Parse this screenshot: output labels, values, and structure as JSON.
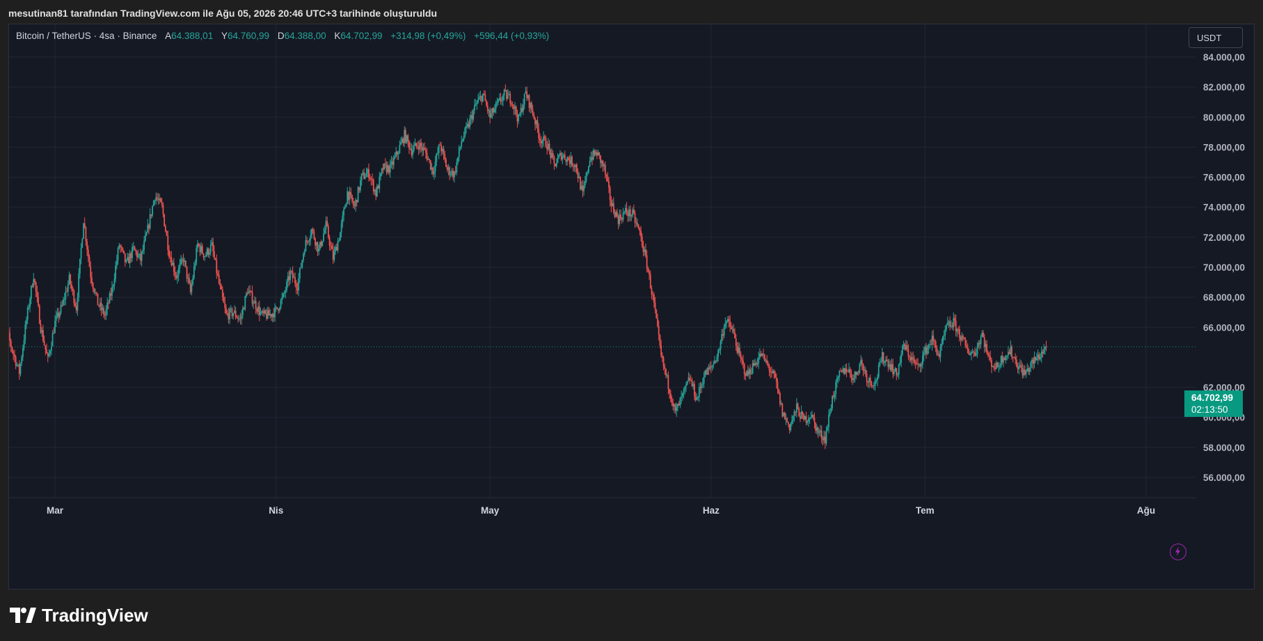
{
  "header": {
    "attribution": "mesutinan81 tarafından TradingView.com ile Ağu 05, 2026 20:46 UTC+3 tarihinde oluşturuldu"
  },
  "legend": {
    "symbol": "Bitcoin / TetherUS · 4sa · Binance",
    "open_label": "A",
    "open_value": "64.388,01",
    "high_label": "Y",
    "high_value": "64.760,99",
    "low_label": "D",
    "low_value": "64.388,00",
    "close_label": "K",
    "close_value": "64.702,99",
    "change_1": "+314,98 (+0,49%)",
    "change_2": "+596,44 (+0,93%)"
  },
  "currency_button": "USDT",
  "last_price": {
    "value": "64.702,99",
    "countdown": "02:13:50"
  },
  "footer": {
    "brand": "TradingView"
  },
  "colors": {
    "up": "#26a69a",
    "down": "#ef5350",
    "background": "#151924",
    "grid": "#242733",
    "price_tag": "#089981"
  },
  "chart_data": {
    "type": "candlestick",
    "symbol": "BTCUSDT",
    "interval": "4h",
    "ylim": [
      55000,
      85000
    ],
    "y_ticks": [
      "84.000,00",
      "82.000,00",
      "80.000,00",
      "78.000,00",
      "76.000,00",
      "74.000,00",
      "72.000,00",
      "70.000,00",
      "68.000,00",
      "66.000,00",
      "62.000,00",
      "60.000,00",
      "58.000,00",
      "56.000,00"
    ],
    "y_tick_values": [
      84000,
      82000,
      80000,
      78000,
      76000,
      74000,
      72000,
      70000,
      68000,
      66000,
      62000,
      60000,
      58000,
      56000
    ],
    "x_labels": [
      "Mar",
      "Nis",
      "May",
      "Haz",
      "Tem",
      "Ağu"
    ],
    "x_label_positions_days": [
      8,
      39,
      69,
      100,
      130,
      161
    ],
    "total_days": 166,
    "last_price": 64702.99,
    "grid": true,
    "price_path": [
      [
        0,
        67800
      ],
      [
        2,
        64500
      ],
      [
        3,
        63000
      ],
      [
        4,
        66500
      ],
      [
        5,
        69500
      ],
      [
        6,
        66000
      ],
      [
        7,
        63800
      ],
      [
        8,
        66300
      ],
      [
        9,
        67400
      ],
      [
        10,
        69200
      ],
      [
        11,
        67300
      ],
      [
        12,
        73200
      ],
      [
        13,
        69500
      ],
      [
        14,
        67600
      ],
      [
        15,
        66800
      ],
      [
        16,
        68500
      ],
      [
        17,
        71500
      ],
      [
        18,
        70200
      ],
      [
        19,
        71200
      ],
      [
        20,
        70500
      ],
      [
        21,
        72500
      ],
      [
        22,
        74800
      ],
      [
        23,
        74000
      ],
      [
        24,
        71000
      ],
      [
        25,
        69400
      ],
      [
        26,
        70600
      ],
      [
        27,
        68300
      ],
      [
        28,
        71500
      ],
      [
        29,
        70800
      ],
      [
        30,
        71400
      ],
      [
        31,
        68900
      ],
      [
        32,
        66800
      ],
      [
        33,
        67000
      ],
      [
        34,
        66500
      ],
      [
        35,
        68500
      ],
      [
        36,
        67600
      ],
      [
        37,
        66800
      ],
      [
        38,
        66800
      ],
      [
        39,
        67100
      ],
      [
        40,
        68000
      ],
      [
        41,
        69600
      ],
      [
        42,
        68800
      ],
      [
        43,
        71400
      ],
      [
        44,
        72500
      ],
      [
        45,
        71100
      ],
      [
        46,
        72800
      ],
      [
        47,
        70600
      ],
      [
        48,
        72300
      ],
      [
        49,
        75000
      ],
      [
        50,
        74000
      ],
      [
        51,
        76000
      ],
      [
        52,
        76300
      ],
      [
        53,
        74900
      ],
      [
        54,
        76600
      ],
      [
        55,
        76600
      ],
      [
        56,
        77600
      ],
      [
        57,
        78800
      ],
      [
        58,
        77800
      ],
      [
        59,
        78200
      ],
      [
        60,
        77600
      ],
      [
        61,
        76400
      ],
      [
        62,
        78200
      ],
      [
        63,
        76500
      ],
      [
        64,
        76200
      ],
      [
        65,
        78400
      ],
      [
        66,
        79500
      ],
      [
        67,
        80800
      ],
      [
        68,
        81500
      ],
      [
        69,
        80000
      ],
      [
        70,
        80800
      ],
      [
        71,
        81500
      ],
      [
        72,
        81200
      ],
      [
        73,
        79800
      ],
      [
        74,
        81600
      ],
      [
        75,
        80300
      ],
      [
        76,
        78600
      ],
      [
        77,
        78200
      ],
      [
        78,
        76800
      ],
      [
        79,
        77500
      ],
      [
        80,
        77200
      ],
      [
        81,
        76800
      ],
      [
        82,
        74800
      ],
      [
        83,
        77300
      ],
      [
        84,
        77600
      ],
      [
        85,
        76600
      ],
      [
        86,
        74200
      ],
      [
        87,
        73200
      ],
      [
        88,
        73700
      ],
      [
        89,
        73500
      ],
      [
        90,
        72300
      ],
      [
        91,
        70200
      ],
      [
        92,
        67500
      ],
      [
        93,
        64000
      ],
      [
        94,
        62200
      ],
      [
        95,
        60300
      ],
      [
        96,
        61400
      ],
      [
        97,
        62600
      ],
      [
        98,
        61200
      ],
      [
        99,
        62800
      ],
      [
        100,
        63300
      ],
      [
        101,
        64300
      ],
      [
        102,
        66500
      ],
      [
        103,
        65800
      ],
      [
        104,
        64000
      ],
      [
        105,
        62800
      ],
      [
        106,
        63500
      ],
      [
        107,
        64200
      ],
      [
        108,
        63400
      ],
      [
        109,
        62500
      ],
      [
        110,
        60300
      ],
      [
        111,
        59400
      ],
      [
        112,
        60600
      ],
      [
        113,
        59800
      ],
      [
        114,
        60200
      ],
      [
        115,
        59000
      ],
      [
        116,
        58600
      ],
      [
        117,
        61300
      ],
      [
        118,
        62800
      ],
      [
        119,
        63300
      ],
      [
        120,
        62600
      ],
      [
        121,
        63700
      ],
      [
        122,
        62500
      ],
      [
        123,
        62300
      ],
      [
        124,
        64000
      ],
      [
        125,
        63600
      ],
      [
        126,
        62800
      ],
      [
        127,
        64800
      ],
      [
        128,
        64000
      ],
      [
        129,
        63300
      ],
      [
        130,
        64400
      ],
      [
        131,
        65200
      ],
      [
        132,
        64100
      ],
      [
        133,
        66000
      ],
      [
        134,
        66300
      ],
      [
        135,
        65400
      ],
      [
        136,
        64400
      ],
      [
        137,
        64300
      ],
      [
        138,
        65600
      ],
      [
        139,
        63800
      ],
      [
        140,
        63300
      ],
      [
        141,
        64100
      ],
      [
        142,
        64400
      ],
      [
        143,
        63500
      ],
      [
        144,
        62900
      ],
      [
        145,
        63600
      ],
      [
        146,
        64100
      ],
      [
        147,
        64703
      ]
    ]
  }
}
